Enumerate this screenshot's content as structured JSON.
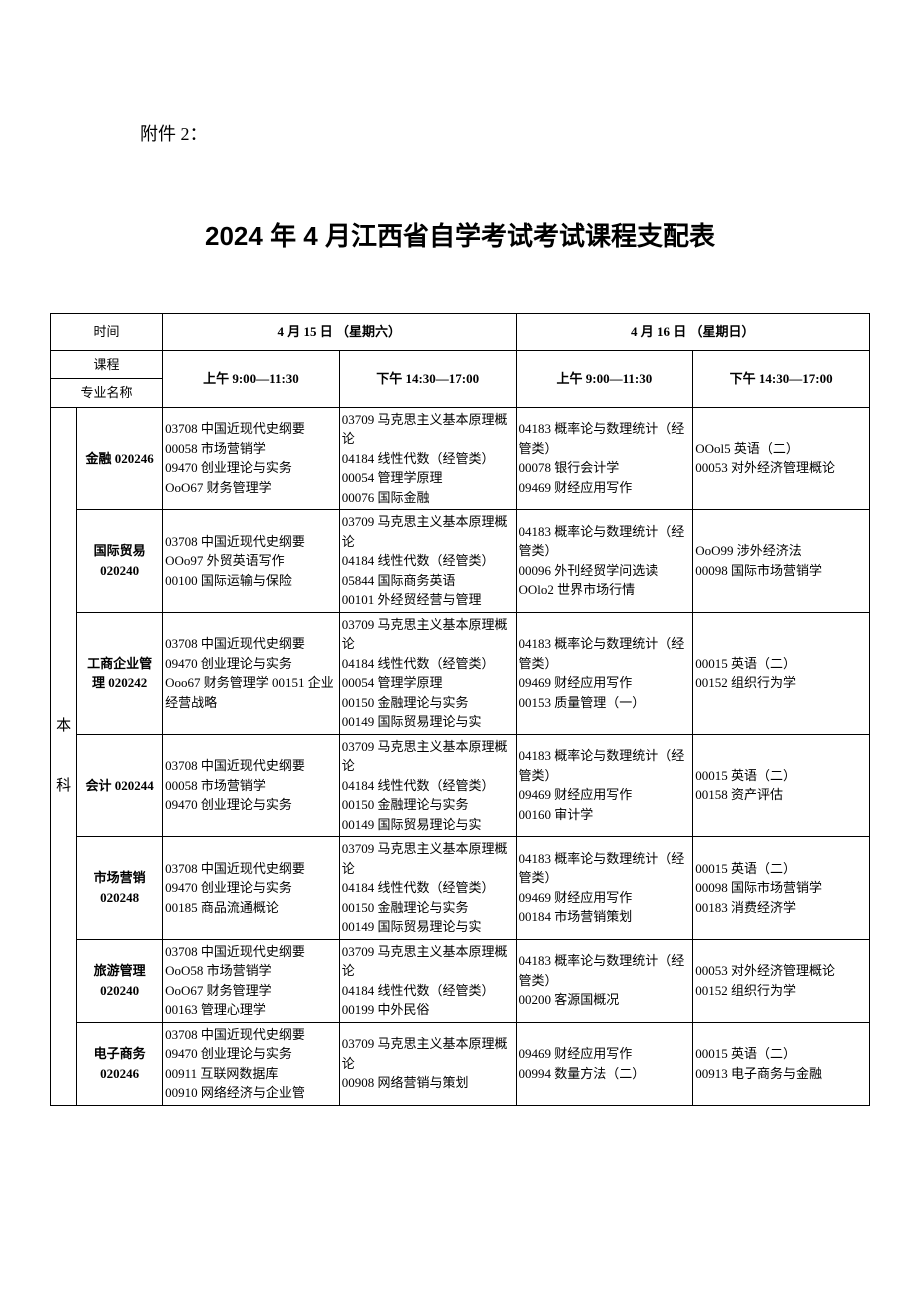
{
  "attachment_label": "附件 2：",
  "main_title": "2024 年 4 月江西省自学考试考试课程支配表",
  "headers": {
    "time_label": "时间",
    "course_label": "课程",
    "major_label": "专业名称",
    "day1": "4 月 15 日 （星期六）",
    "day2": "4 月 16 日 （星期日）",
    "am": "上午 9:00—11:30",
    "pm": "下午 14:30—17:00"
  },
  "category": "本\n\n\n科",
  "rows": [
    {
      "major": "金融\n020246",
      "am1": "03708 中国近现代史纲要\n00058 市场营销学\n09470 创业理论与实务\nOoO67 财务管理学",
      "pm1": "03709 马克思主义基本原理概论\n04184 线性代数（经管类）\n00054 管理学原理\n00076 国际金融",
      "am2": "04183 概率论与数理统计（经管类）\n00078 银行会计学\n09469 财经应用写作",
      "pm2": "OOol5 英语（二）\n00053 对外经济管理概论"
    },
    {
      "major": "国际贸易\n020240",
      "am1": "03708 中国近现代史纲要\nOOo97 外贸英语写作\n00100 国际运输与保险",
      "pm1": "03709 马克思主义基本原理概论\n04184 线性代数（经管类）\n05844 国际商务英语\n00101 外经贸经营与管理",
      "am2": "04183 概率论与数理统计（经管类）\n00096 外刊经贸学问选读\nOOlo2 世界市场行情",
      "pm2": "OoO99 涉外经济法\n00098 国际市场营销学"
    },
    {
      "major": "工商企业管理\n020242",
      "am1": "03708 中国近现代史纲要\n09470 创业理论与实务\nOoo67 财务管理学 00151 企业经营战略",
      "pm1": "03709 马克思主义基本原理概论\n04184 线性代数（经管类）\n00054 管理学原理\n00150 金融理论与实务\n00149 国际贸易理论与实",
      "am2": "04183 概率论与数理统计（经管类）\n09469 财经应用写作\n00153 质量管理（一）",
      "pm2": "00015 英语（二）\n00152 组织行为学"
    },
    {
      "major": "会计 020244",
      "am1": "03708 中国近现代史纲要\n00058 市场营销学\n09470 创业理论与实务",
      "pm1": "03709 马克思主义基本原理概论\n04184 线性代数（经管类）\n00150 金融理论与实务\n00149 国际贸易理论与实",
      "am2": "04183 概率论与数理统计（经管类）\n09469 财经应用写作\n00160 审计学",
      "pm2": "00015 英语（二）\n00158 资产评估"
    },
    {
      "major": "市场营销\n020248",
      "am1": "03708 中国近现代史纲要\n09470 创业理论与实务\n00185 商品流通概论",
      "pm1": "03709 马克思主义基本原理概论\n04184 线性代数（经管类）\n00150 金融理论与实务\n00149 国际贸易理论与实",
      "am2": "04183 概率论与数理统计（经管类）\n09469 财经应用写作\n00184 市场营销策划",
      "pm2": "00015 英语（二）\n00098 国际市场营销学\n00183 消费经济学"
    },
    {
      "major": "旅游管理\n020240",
      "am1": "03708 中国近现代史纲要\nOoO58 市场营销学\nOoO67 财务管理学\n00163 管理心理学",
      "pm1": "03709 马克思主义基本原理概论\n04184 线性代数（经管类）\n00199 中外民俗",
      "am2": "04183 概率论与数理统计（经管类）\n00200 客源国概况",
      "pm2": "00053 对外经济管理概论\n00152 组织行为学"
    },
    {
      "major": "电子商务\n020246",
      "am1": "03708 中国近现代史纲要\n09470 创业理论与实务\n00911 互联网数据库\n00910 网络经济与企业管",
      "pm1": "03709 马克思主义基本原理概论\n00908 网络营销与策划",
      "am2": "09469 财经应用写作\n00994 数量方法（二）",
      "pm2": "00015 英语（二）\n00913 电子商务与金融"
    }
  ]
}
